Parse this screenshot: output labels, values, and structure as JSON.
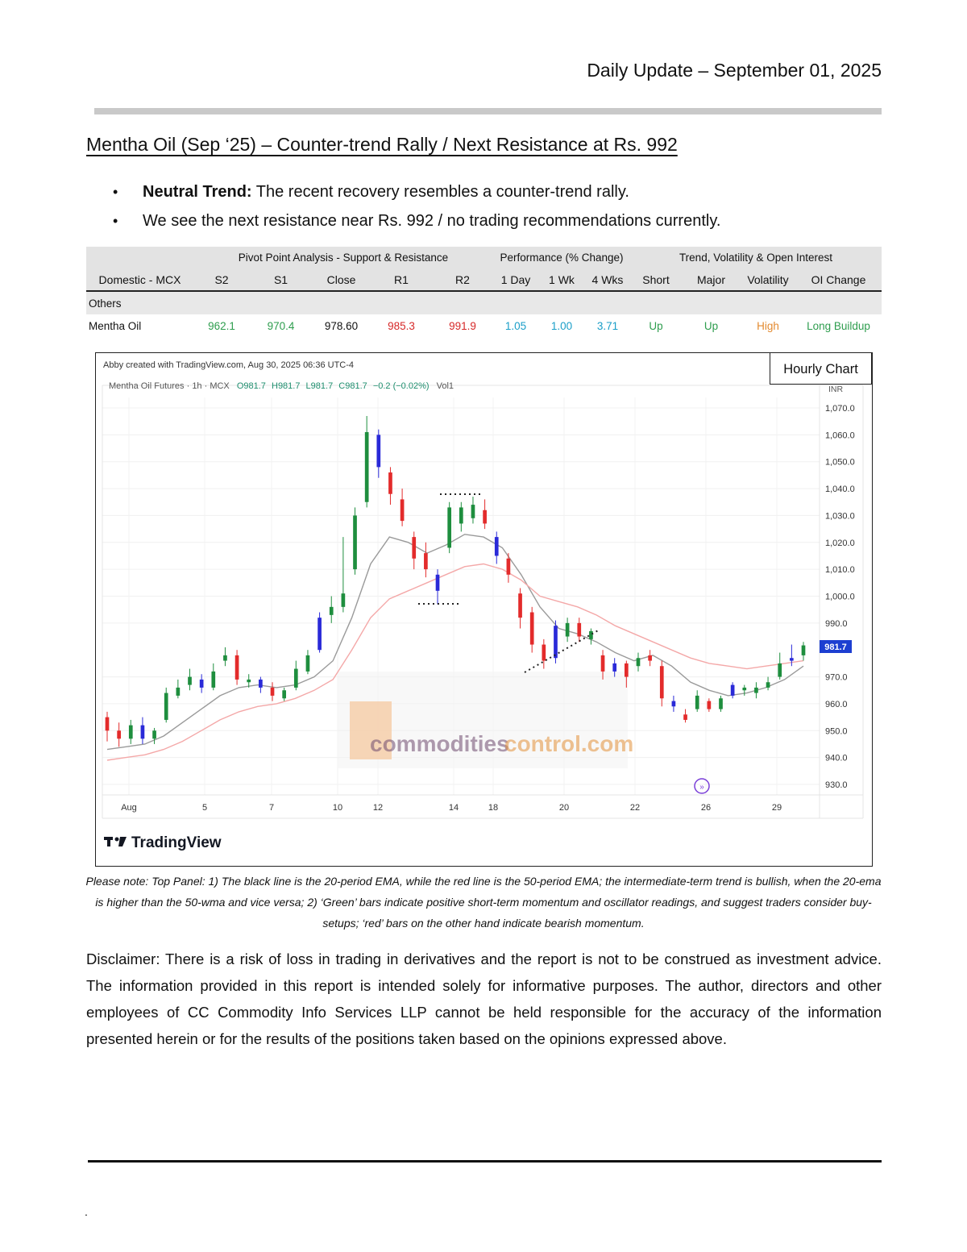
{
  "header": {
    "date": "Daily Update – September 01, 2025"
  },
  "title": "Mentha Oil (Sep    ‘25) – Counter-trend Rally / Next Resistance at Rs. 992",
  "bullets": [
    {
      "bold": "Neutral Trend:",
      "text": " The recent recovery resembles a counter-trend rally."
    },
    {
      "bold": "",
      "text": "We see the next resistance near Rs. 992 / no trading recommendations currently."
    }
  ],
  "table": {
    "groups": [
      "Pivot Point Analysis - Support & Resistance",
      "Performance (% Change)",
      "Trend, Volatility & Open Interest"
    ],
    "headers": [
      "Domestic - MCX",
      "S2",
      "S1",
      "Close",
      "R1",
      "R2",
      "1 Day",
      "1 Wk",
      "4 Wks",
      "Short",
      "Major",
      "Volatility",
      "OI Change"
    ],
    "section": "Others",
    "row": [
      "Mentha Oil",
      "962.1",
      "970.4",
      "978.60",
      "985.3",
      "991.9",
      "1.05",
      "1.00",
      "3.71",
      "Up",
      "Up",
      "High",
      "Long Buildup"
    ],
    "colors": {
      "green": "#2e9d4e",
      "red": "#d62828",
      "blue": "#1a9ec8",
      "orange": "#e38a2f"
    }
  },
  "chart": {
    "box_label": "Hourly Chart",
    "created": "Abby created with TradingView.com, Aug 30, 2025 06:36 UTC-4",
    "symbol": "Mentha Oil Futures · 1h · MCX",
    "ohlc": {
      "o": "O981.7",
      "h": "H981.7",
      "l": "L981.7",
      "c": "C981.7",
      "chg": "−0.2 (−0.02%)",
      "vol": "Vol1"
    },
    "currency": "INR",
    "last_price": "981.7",
    "watermark_a": "commodities",
    "watermark_b": "control.com",
    "brand": "TradingView",
    "colors": {
      "up": "#1e8e3e",
      "down": "#e32b2b",
      "neutral": "#2a2ad8",
      "ema20": "#9a9a9a",
      "ema50": "#f4a8a8",
      "label_bg": "#1d3fd1"
    }
  },
  "chart_data": {
    "type": "candlestick",
    "title": "",
    "y_ticks": [
      930,
      940,
      950,
      960,
      970,
      990,
      1000,
      1010,
      1020,
      1030,
      1040,
      1050,
      1060,
      1070
    ],
    "y_tick_labels": [
      "930.0",
      "940.0",
      "950.0",
      "960.0",
      "970.0",
      "990.0",
      "1,000.0",
      "1,010.0",
      "1,020.0",
      "1,030.0",
      "1,040.0",
      "1,050.0",
      "1,060.0",
      "1,070.0"
    ],
    "x_tick_labels": [
      "Aug",
      "5",
      "7",
      "10",
      "12",
      "14",
      "18",
      "20",
      "22",
      "26",
      "29"
    ],
    "ylim": [
      925,
      1075
    ],
    "series": [
      {
        "name": "",
        "kind": "ema20",
        "values": [
          943,
          944,
          945,
          948,
          953,
          958,
          963,
          966,
          967,
          966,
          967,
          970,
          976,
          992,
          1012,
          1022,
          1020,
          1016,
          1019,
          1023,
          1022,
          1018,
          1008,
          996,
          988,
          986,
          983,
          979,
          976,
          978,
          974,
          968,
          965,
          963,
          964,
          966,
          969,
          974
        ]
      },
      {
        "name": "",
        "kind": "ema50",
        "values": [
          939,
          940,
          941,
          943,
          946,
          950,
          954,
          957,
          959,
          960,
          962,
          965,
          969,
          980,
          992,
          999,
          1002,
          1005,
          1008,
          1011,
          1012,
          1010,
          1006,
          1000,
          998,
          996,
          993,
          989,
          986,
          983,
          980,
          977,
          975,
          974,
          973,
          974,
          975,
          976
        ]
      }
    ],
    "candles": [
      {
        "o": 955,
        "c": 950,
        "h": 957,
        "l": 946
      },
      {
        "o": 950,
        "c": 947,
        "h": 953,
        "l": 944
      },
      {
        "o": 947,
        "c": 952,
        "h": 954,
        "l": 945
      },
      {
        "o": 952,
        "c": 947,
        "h": 955,
        "l": 945
      },
      {
        "o": 947,
        "c": 950,
        "h": 951,
        "l": 945
      },
      {
        "o": 954,
        "c": 964,
        "h": 966,
        "l": 953
      },
      {
        "o": 963,
        "c": 966,
        "h": 969,
        "l": 962
      },
      {
        "o": 967,
        "c": 970,
        "h": 973,
        "l": 965
      },
      {
        "o": 969,
        "c": 966,
        "h": 971,
        "l": 964
      },
      {
        "o": 966,
        "c": 972,
        "h": 975,
        "l": 965
      },
      {
        "o": 976,
        "c": 978,
        "h": 981,
        "l": 974
      },
      {
        "o": 978,
        "c": 969,
        "h": 980,
        "l": 967
      },
      {
        "o": 968,
        "c": 969,
        "h": 971,
        "l": 966
      },
      {
        "o": 969,
        "c": 966,
        "h": 970,
        "l": 964
      },
      {
        "o": 966,
        "c": 963,
        "h": 968,
        "l": 961
      },
      {
        "o": 962,
        "c": 965,
        "h": 966,
        "l": 961
      },
      {
        "o": 966,
        "c": 973,
        "h": 976,
        "l": 965
      },
      {
        "o": 972,
        "c": 978,
        "h": 980,
        "l": 971
      },
      {
        "o": 980,
        "c": 992,
        "h": 994,
        "l": 979
      },
      {
        "o": 993,
        "c": 996,
        "h": 1000,
        "l": 990
      },
      {
        "o": 996,
        "c": 1001,
        "h": 1022,
        "l": 994
      },
      {
        "o": 1010,
        "c": 1030,
        "h": 1033,
        "l": 1008
      },
      {
        "o": 1035,
        "c": 1061,
        "h": 1067,
        "l": 1033
      },
      {
        "o": 1060,
        "c": 1048,
        "h": 1062,
        "l": 1044
      },
      {
        "o": 1046,
        "c": 1038,
        "h": 1048,
        "l": 1034
      },
      {
        "o": 1036,
        "c": 1028,
        "h": 1040,
        "l": 1026
      },
      {
        "o": 1022,
        "c": 1014,
        "h": 1024,
        "l": 1010
      },
      {
        "o": 1016,
        "c": 1010,
        "h": 1020,
        "l": 1007
      },
      {
        "o": 1008,
        "c": 1002,
        "h": 1010,
        "l": 997
      },
      {
        "o": 1018,
        "c": 1033,
        "h": 1035,
        "l": 1016
      },
      {
        "o": 1027,
        "c": 1033,
        "h": 1035,
        "l": 1024
      },
      {
        "o": 1029,
        "c": 1034,
        "h": 1037,
        "l": 1027
      },
      {
        "o": 1032,
        "c": 1027,
        "h": 1036,
        "l": 1025
      },
      {
        "o": 1022,
        "c": 1015,
        "h": 1024,
        "l": 1012
      },
      {
        "o": 1014,
        "c": 1008,
        "h": 1016,
        "l": 1005
      },
      {
        "o": 1001,
        "c": 992,
        "h": 1003,
        "l": 988
      },
      {
        "o": 994,
        "c": 982,
        "h": 996,
        "l": 979
      },
      {
        "o": 982,
        "c": 976,
        "h": 984,
        "l": 973
      },
      {
        "o": 977,
        "c": 989,
        "h": 991,
        "l": 975
      },
      {
        "o": 985,
        "c": 990,
        "h": 992,
        "l": 983
      },
      {
        "o": 990,
        "c": 985,
        "h": 992,
        "l": 983
      },
      {
        "o": 984,
        "c": 987,
        "h": 988,
        "l": 982
      },
      {
        "o": 978,
        "c": 972,
        "h": 980,
        "l": 969
      },
      {
        "o": 972,
        "c": 975,
        "h": 977,
        "l": 970
      },
      {
        "o": 975,
        "c": 970,
        "h": 976,
        "l": 966
      },
      {
        "o": 974,
        "c": 977,
        "h": 979,
        "l": 972
      },
      {
        "o": 978,
        "c": 976,
        "h": 980,
        "l": 974
      },
      {
        "o": 974,
        "c": 962,
        "h": 976,
        "l": 959
      },
      {
        "o": 961,
        "c": 959,
        "h": 963,
        "l": 957
      },
      {
        "o": 956,
        "c": 954,
        "h": 958,
        "l": 953
      },
      {
        "o": 958,
        "c": 963,
        "h": 965,
        "l": 957
      },
      {
        "o": 961,
        "c": 958,
        "h": 962,
        "l": 957
      },
      {
        "o": 958,
        "c": 962,
        "h": 963,
        "l": 957
      },
      {
        "o": 963,
        "c": 967,
        "h": 968,
        "l": 962
      },
      {
        "o": 965,
        "c": 966,
        "h": 967,
        "l": 963
      },
      {
        "o": 964,
        "c": 966,
        "h": 968,
        "l": 962
      },
      {
        "o": 966,
        "c": 968,
        "h": 970,
        "l": 965
      },
      {
        "o": 970,
        "c": 975,
        "h": 979,
        "l": 969
      },
      {
        "o": 976,
        "c": 977,
        "h": 982,
        "l": 974
      },
      {
        "o": 978,
        "c": 981.7,
        "h": 983,
        "l": 976
      }
    ]
  },
  "note": "Please note: Top Panel: 1) The black line is the 20-period EMA, while the red line is the 50-period EMA; the intermediate-term trend is bullish, when the 20-ema is higher than the 50-wma and vice versa; 2)    ‘Green’    bars indicate positive short-term momentum and oscillator readings, and suggest traders consider buy-setups;    ‘red’    bars on the other hand indicate bearish momentum.",
  "disclaimer": "Disclaimer: There is a risk of loss in trading in derivatives and the report is not to be construed as investment advice. The information provided in this report is intended solely for informative purposes. The author, directors and other employees of CC Commodity Info Services LLP cannot be held responsible for the accuracy of the information presented herein or for the results of the positions taken based on the opinions expressed above.",
  "footer": {
    "mark": "."
  }
}
